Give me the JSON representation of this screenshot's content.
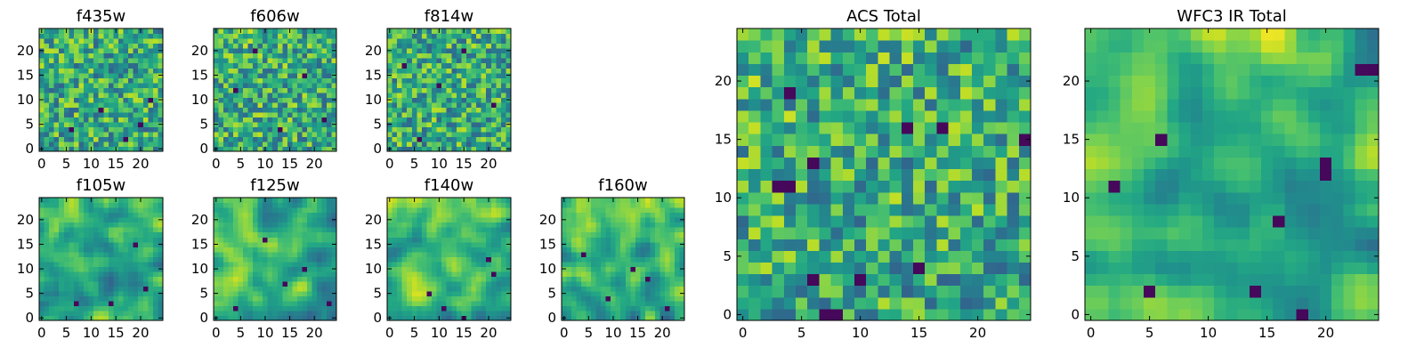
{
  "chart_data": [
    {
      "id": "f435w",
      "type": "heatmap",
      "title": "f435w",
      "grid_size": 25,
      "xticks": [
        "0",
        "5",
        "10",
        "15",
        "20"
      ],
      "yticks": [
        "0",
        "5",
        "10",
        "15",
        "20"
      ],
      "colormap": "viridis",
      "texture": "noisy",
      "gradient": 0.0,
      "seed": 11,
      "dark_spots": [
        [
          22,
          10
        ],
        [
          20,
          5
        ],
        [
          12,
          8
        ],
        [
          6,
          4
        ],
        [
          17,
          2
        ]
      ]
    },
    {
      "id": "f606w",
      "type": "heatmap",
      "title": "f606w",
      "grid_size": 25,
      "xticks": [
        "0",
        "5",
        "10",
        "15",
        "20"
      ],
      "yticks": [
        "0",
        "5",
        "10",
        "15",
        "20"
      ],
      "colormap": "viridis",
      "texture": "noisy",
      "gradient": 0.1,
      "seed": 23,
      "dark_spots": [
        [
          8,
          20
        ],
        [
          13,
          4
        ],
        [
          22,
          6
        ],
        [
          4,
          12
        ],
        [
          18,
          15
        ]
      ]
    },
    {
      "id": "f814w",
      "type": "heatmap",
      "title": "f814w",
      "grid_size": 25,
      "xticks": [
        "0",
        "5",
        "10",
        "15",
        "20"
      ],
      "yticks": [
        "0",
        "5",
        "10",
        "15",
        "20"
      ],
      "colormap": "viridis",
      "texture": "noisy",
      "gradient": 0.05,
      "seed": 37,
      "dark_spots": [
        [
          15,
          20
        ],
        [
          3,
          17
        ],
        [
          10,
          13
        ],
        [
          21,
          9
        ],
        [
          6,
          2
        ]
      ]
    },
    {
      "id": "f105w",
      "type": "heatmap",
      "title": "f105w",
      "grid_size": 25,
      "xticks": [
        "0",
        "5",
        "10",
        "15",
        "20"
      ],
      "yticks": [
        "0",
        "5",
        "10",
        "15",
        "20"
      ],
      "colormap": "viridis",
      "texture": "smooth",
      "gradient": 0.35,
      "seed": 41,
      "dark_spots": [
        [
          19,
          15
        ],
        [
          21,
          6
        ],
        [
          14,
          3
        ],
        [
          7,
          3
        ]
      ]
    },
    {
      "id": "f125w",
      "type": "heatmap",
      "title": "f125w",
      "grid_size": 25,
      "xticks": [
        "0",
        "5",
        "10",
        "15",
        "20"
      ],
      "yticks": [
        "0",
        "5",
        "10",
        "15",
        "20"
      ],
      "colormap": "viridis",
      "texture": "smooth",
      "gradient": 0.25,
      "seed": 53,
      "dark_spots": [
        [
          23,
          3
        ],
        [
          10,
          16
        ],
        [
          4,
          2
        ],
        [
          18,
          10
        ],
        [
          14,
          7
        ]
      ]
    },
    {
      "id": "f140w",
      "type": "heatmap",
      "title": "f140w",
      "grid_size": 25,
      "xticks": [
        "0",
        "5",
        "10",
        "15",
        "20"
      ],
      "yticks": [
        "0",
        "5",
        "10",
        "15",
        "20"
      ],
      "colormap": "viridis",
      "texture": "smooth",
      "gradient": 0.4,
      "seed": 67,
      "dark_spots": [
        [
          20,
          12
        ],
        [
          21,
          9
        ],
        [
          11,
          2
        ],
        [
          15,
          0
        ],
        [
          8,
          5
        ]
      ]
    },
    {
      "id": "f160w",
      "type": "heatmap",
      "title": "f160w",
      "grid_size": 25,
      "xticks": [
        "0",
        "5",
        "10",
        "15",
        "20"
      ],
      "yticks": [
        "0",
        "5",
        "10",
        "15",
        "20"
      ],
      "colormap": "viridis",
      "texture": "smooth",
      "gradient": 0.4,
      "seed": 79,
      "dark_spots": [
        [
          17,
          8
        ],
        [
          14,
          10
        ],
        [
          9,
          4
        ],
        [
          21,
          2
        ],
        [
          4,
          13
        ]
      ]
    },
    {
      "id": "acs_total",
      "type": "heatmap",
      "title": "ACS Total",
      "grid_size": 25,
      "xticks": [
        "0",
        "5",
        "10",
        "15",
        "20"
      ],
      "yticks": [
        "0",
        "5",
        "10",
        "15",
        "20"
      ],
      "colormap": "viridis",
      "texture": "noisy",
      "gradient": 0.1,
      "seed": 91,
      "dark_spots": [
        [
          3,
          11
        ],
        [
          4,
          11
        ],
        [
          6,
          13
        ],
        [
          4,
          19
        ],
        [
          14,
          16
        ],
        [
          17,
          16
        ],
        [
          24,
          15
        ],
        [
          15,
          4
        ],
        [
          10,
          3
        ],
        [
          8,
          0
        ],
        [
          7,
          0
        ],
        [
          6,
          3
        ]
      ]
    },
    {
      "id": "wfc3_ir_total",
      "type": "heatmap",
      "title": "WFC3 IR Total",
      "grid_size": 25,
      "xticks": [
        "0",
        "5",
        "10",
        "15",
        "20"
      ],
      "yticks": [
        "0",
        "5",
        "10",
        "15",
        "20"
      ],
      "colormap": "viridis",
      "texture": "smooth",
      "gradient": 0.55,
      "seed": 103,
      "dark_spots": [
        [
          23,
          21
        ],
        [
          24,
          21
        ],
        [
          6,
          15
        ],
        [
          20,
          13
        ],
        [
          20,
          12
        ],
        [
          16,
          8
        ],
        [
          14,
          2
        ],
        [
          18,
          0
        ],
        [
          5,
          2
        ],
        [
          2,
          11
        ]
      ]
    }
  ]
}
